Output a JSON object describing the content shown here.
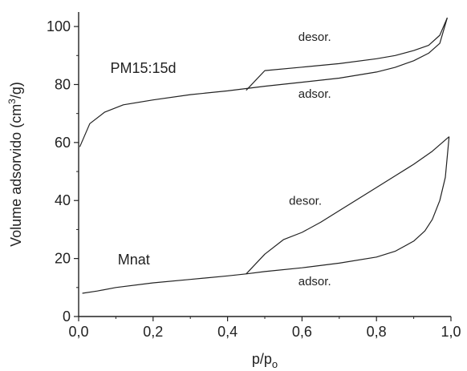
{
  "chart_data": {
    "type": "line",
    "title": "",
    "xlabel": {
      "base": "p/p",
      "sub": "o"
    },
    "ylabel": {
      "before": "Volume adsorvido (cm",
      "sup": "3",
      "after": "/g)"
    },
    "xlim": [
      0.0,
      1.0
    ],
    "ylim": [
      0,
      105
    ],
    "x_ticks": [
      0.0,
      0.2,
      0.4,
      0.6,
      0.8,
      1.0
    ],
    "x_tick_labels": [
      "0,0",
      "0,2",
      "0,4",
      "0,6",
      "0,8",
      "1,0"
    ],
    "y_ticks": [
      0,
      20,
      40,
      60,
      80,
      100
    ],
    "y_tick_labels": [
      "0",
      "20",
      "40",
      "60",
      "80",
      "100"
    ],
    "grid": false,
    "line_color": "#222222",
    "series": [
      {
        "name": "PM15:15d",
        "adsorption": {
          "x": [
            0.003,
            0.03,
            0.07,
            0.12,
            0.2,
            0.3,
            0.4,
            0.5,
            0.6,
            0.7,
            0.8,
            0.85,
            0.9,
            0.94,
            0.97,
            0.99
          ],
          "y": [
            58.5,
            66.5,
            70.5,
            73.0,
            74.7,
            76.5,
            77.8,
            79.4,
            80.8,
            82.2,
            84.3,
            85.9,
            88.2,
            90.8,
            94.2,
            103.0
          ]
        },
        "desorption": {
          "x": [
            0.99,
            0.97,
            0.94,
            0.9,
            0.85,
            0.8,
            0.7,
            0.6,
            0.5,
            0.45
          ],
          "y": [
            103.0,
            97.0,
            93.5,
            91.7,
            90.0,
            88.9,
            87.2,
            86.0,
            84.8,
            78.0
          ]
        }
      },
      {
        "name": "Mnat",
        "adsorption": {
          "x": [
            0.01,
            0.05,
            0.1,
            0.2,
            0.3,
            0.4,
            0.45,
            0.5,
            0.6,
            0.7,
            0.8,
            0.85,
            0.9,
            0.93,
            0.95,
            0.97,
            0.985,
            0.995
          ],
          "y": [
            8.0,
            8.8,
            10.0,
            11.6,
            12.8,
            14.0,
            14.7,
            15.5,
            16.8,
            18.4,
            20.5,
            22.5,
            26.0,
            29.5,
            33.5,
            40.0,
            48.0,
            62.0
          ]
        },
        "desorption": {
          "x": [
            0.995,
            0.95,
            0.9,
            0.85,
            0.8,
            0.7,
            0.65,
            0.6,
            0.55,
            0.5,
            0.45
          ],
          "y": [
            62.0,
            57.0,
            52.5,
            48.5,
            44.5,
            36.5,
            32.5,
            29.0,
            26.5,
            21.5,
            14.7
          ]
        }
      }
    ],
    "annotations": [
      {
        "text": "desor.",
        "x": 0.59,
        "y": 95.0,
        "style": "small"
      },
      {
        "text": "adsor.",
        "x": 0.59,
        "y": 75.5,
        "style": "small"
      },
      {
        "text": "PM15:15d",
        "x": 0.085,
        "y": 84.0,
        "style": "big"
      },
      {
        "text": "desor.",
        "x": 0.565,
        "y": 38.5,
        "style": "small"
      },
      {
        "text": "Mnat",
        "x": 0.105,
        "y": 18.0,
        "style": "big"
      },
      {
        "text": "adsor.",
        "x": 0.59,
        "y": 10.8,
        "style": "small"
      }
    ]
  }
}
